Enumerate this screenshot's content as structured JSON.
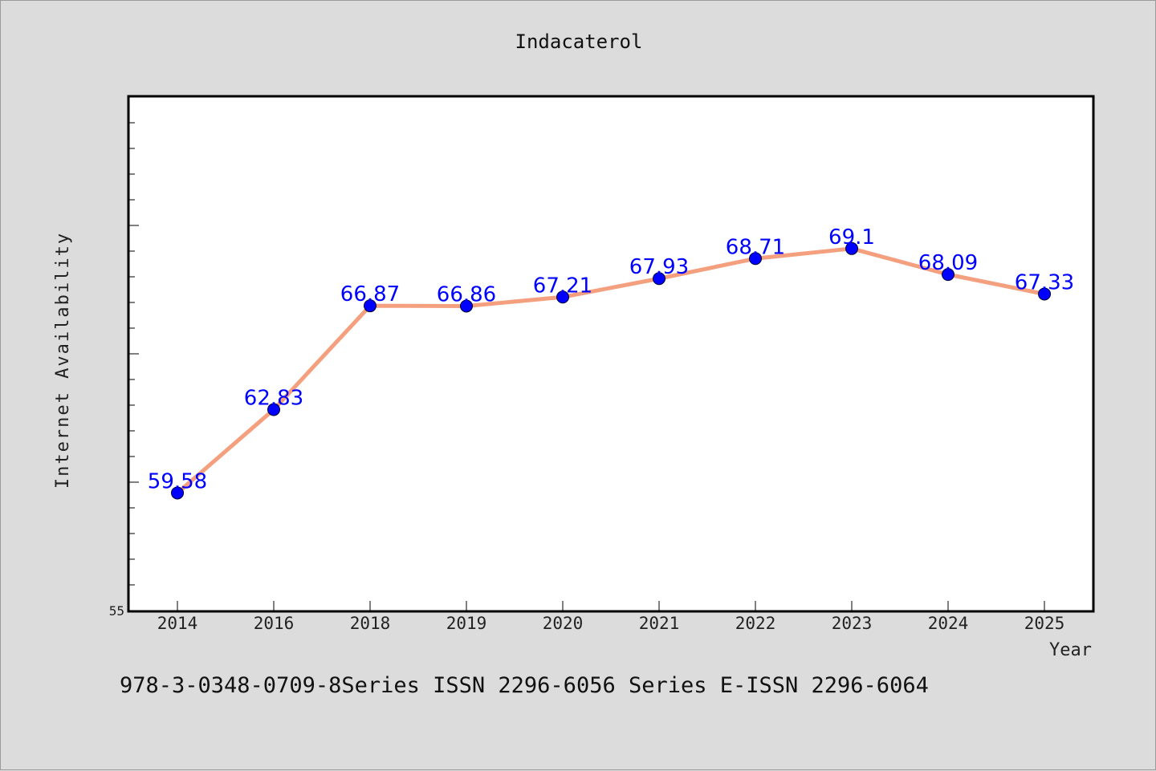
{
  "chart_data": {
    "type": "line",
    "title": "Indacaterol",
    "xlabel": "Year",
    "ylabel": "Internet Availability",
    "categories": [
      "2014",
      "2016",
      "2018",
      "2019",
      "2020",
      "2021",
      "2022",
      "2023",
      "2024",
      "2025"
    ],
    "series": [
      {
        "values": [
          59.58,
          62.83,
          66.87,
          66.86,
          67.21,
          67.93,
          68.71,
          69.1,
          68.09,
          67.33
        ],
        "labels": [
          "59.58",
          "62.83",
          "66.87",
          "66.86",
          "67.21",
          "67.93",
          "68.71",
          "69.1",
          "68.09",
          "67.33"
        ]
      }
    ],
    "ylim": [
      55,
      75
    ],
    "y_tick_labels": [
      "55"
    ],
    "grid": false,
    "legend": "none",
    "colors": {
      "line": "#f4a07f",
      "marker": "#0000ff",
      "data_label": "#0000ff",
      "plot_background": "#ffffff",
      "page_background": "#dcdcdc"
    }
  },
  "footer": {
    "text": "978-3-0348-0709-8Series ISSN 2296-6056 Series E-ISSN 2296-6064"
  }
}
